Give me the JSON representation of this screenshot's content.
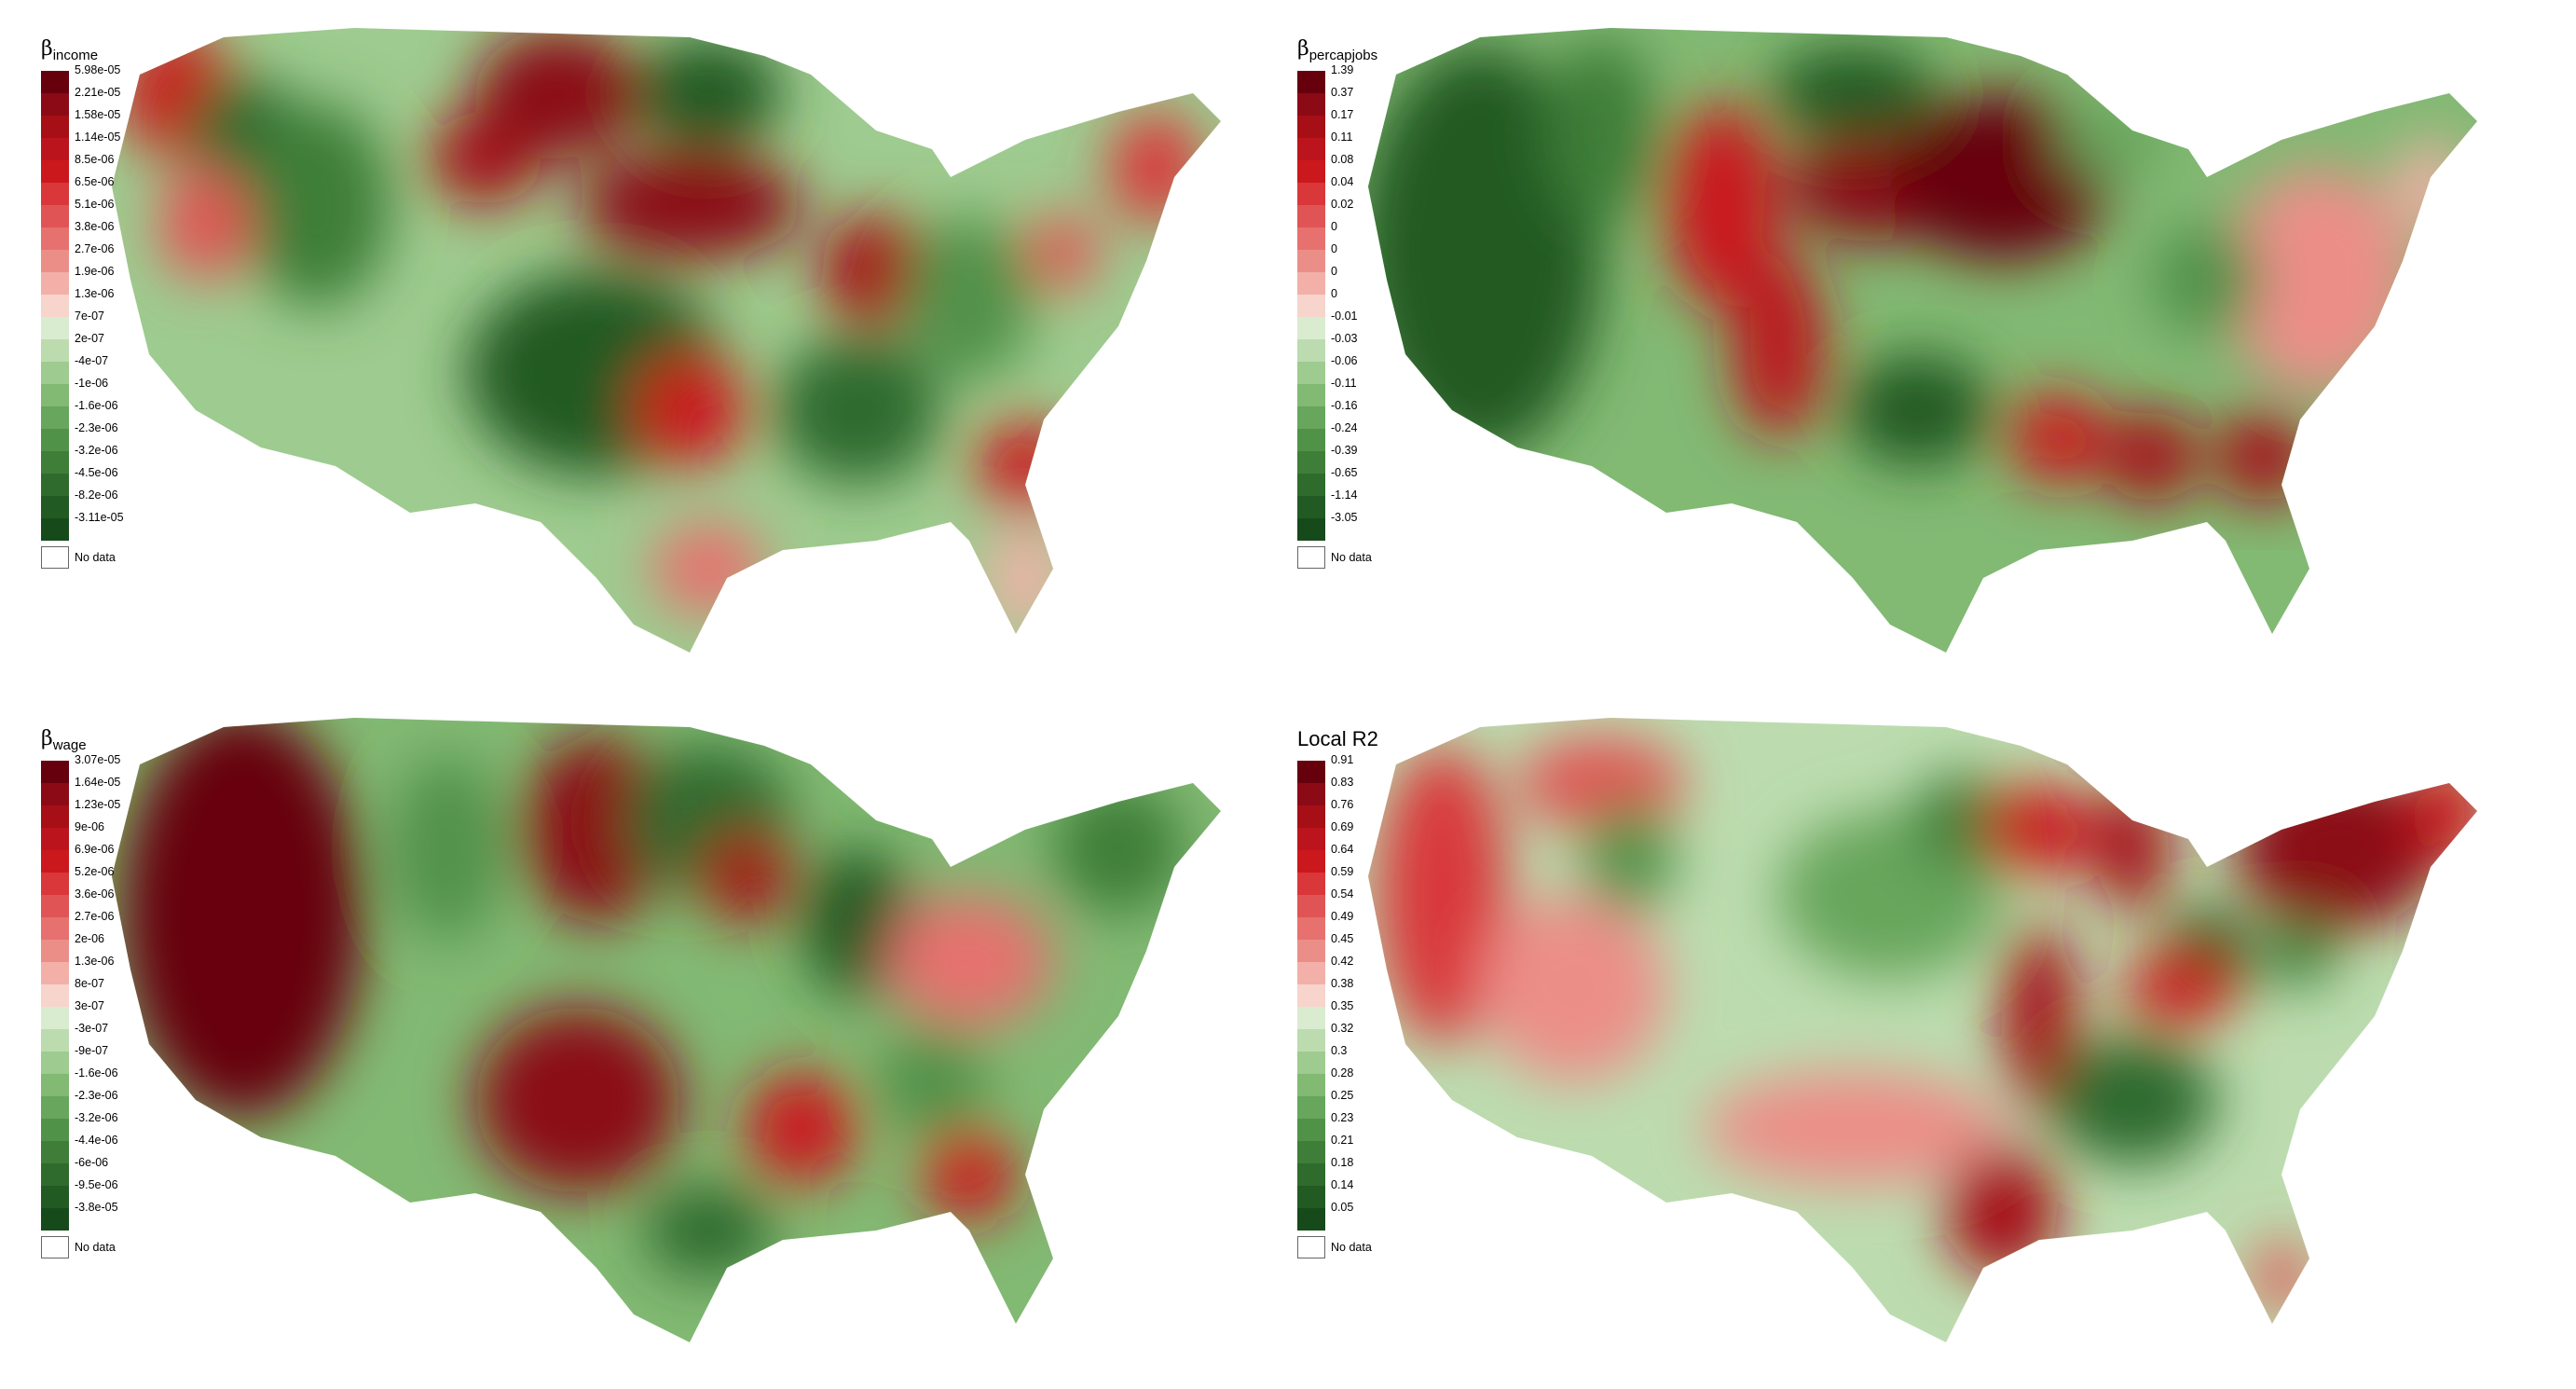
{
  "panels": [
    {
      "id": "income",
      "title_prefix": "β",
      "title_sub": "income",
      "legend_labels": [
        "5.98e-05",
        "2.21e-05",
        "1.58e-05",
        "1.14e-05",
        "8.5e-06",
        "6.5e-06",
        "5.1e-06",
        "3.8e-06",
        "2.7e-06",
        "1.9e-06",
        "1.3e-06",
        "7e-07",
        "2e-07",
        "-4e-07",
        "-1e-06",
        "-1.6e-06",
        "-2.3e-06",
        "-3.2e-06",
        "-4.5e-06",
        "-8.2e-06",
        "-3.11e-05"
      ],
      "no_data_label": "No data"
    },
    {
      "id": "percapjobs",
      "title_prefix": "β",
      "title_sub": "percapjobs",
      "legend_labels": [
        "1.39",
        "0.37",
        "0.17",
        "0.11",
        "0.08",
        "0.04",
        "0.02",
        "0",
        "0",
        "0",
        "0",
        "-0.01",
        "-0.03",
        "-0.06",
        "-0.11",
        "-0.16",
        "-0.24",
        "-0.39",
        "-0.65",
        "-1.14",
        "-3.05"
      ],
      "no_data_label": "No data"
    },
    {
      "id": "wage",
      "title_prefix": "β",
      "title_sub": "wage",
      "legend_labels": [
        "3.07e-05",
        "1.64e-05",
        "1.23e-05",
        "9e-06",
        "6.9e-06",
        "5.2e-06",
        "3.6e-06",
        "2.7e-06",
        "2e-06",
        "1.3e-06",
        "8e-07",
        "3e-07",
        "-3e-07",
        "-9e-07",
        "-1.6e-06",
        "-2.3e-06",
        "-3.2e-06",
        "-4.4e-06",
        "-6e-06",
        "-9.5e-06",
        "-3.8e-05"
      ],
      "no_data_label": "No data"
    },
    {
      "id": "r2",
      "title_plain": "Local R2",
      "legend_labels": [
        "0.91",
        "0.83",
        "0.76",
        "0.69",
        "0.64",
        "0.59",
        "0.54",
        "0.49",
        "0.45",
        "0.42",
        "0.38",
        "0.35",
        "0.32",
        "0.3",
        "0.28",
        "0.25",
        "0.23",
        "0.21",
        "0.18",
        "0.14",
        "0.05"
      ],
      "no_data_label": "No data"
    }
  ],
  "palette": [
    "#67000d",
    "#8b0a16",
    "#a50f15",
    "#bb141c",
    "#cb181d",
    "#d9373a",
    "#e05455",
    "#e6716e",
    "#ec8e88",
    "#f2b0a8",
    "#f7d4cc",
    "#d9ecd0",
    "#bcdcaf",
    "#9ecb8f",
    "#82b973",
    "#67a65c",
    "#519249",
    "#3e7e39",
    "#2f6b2d",
    "#225a23",
    "#174a1a"
  ]
}
